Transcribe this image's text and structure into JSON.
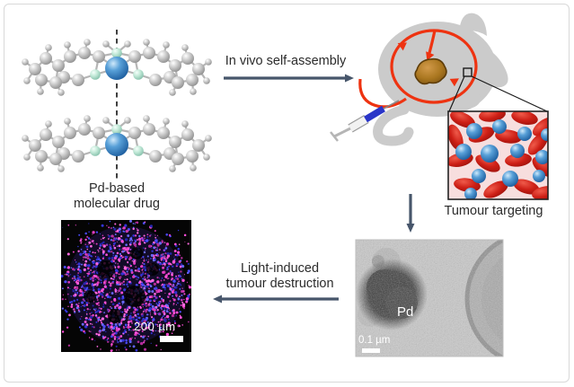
{
  "figure": {
    "panels": {
      "molecular_drug": {
        "caption_line1": "Pd-based",
        "caption_line2": "molecular drug"
      },
      "tem": {
        "particle_label": "Pd",
        "scale_label": "0.1 µm"
      },
      "fluorescence": {
        "scale_label": "200 µm"
      }
    },
    "steps": {
      "self_assembly": {
        "label": "In vivo self-assembly",
        "direction": "right"
      },
      "tumour_targeting": {
        "label": "Tumour targeting",
        "direction": "down"
      },
      "light_destruction": {
        "line1": "Light-induced",
        "line2": "tumour destruction",
        "direction": "left"
      }
    },
    "icons": {
      "molecule": "pd-complex-stack-icon",
      "mouse": "mouse-silhouette-icon",
      "syringe": "syringe-icon",
      "circulation": "blood-circulation-loop-icon",
      "tumour": "tumour-blob-icon",
      "inset": "blood-cells-nanoparticles-icon"
    },
    "colors": {
      "step_arrow": "#47566b",
      "vessel_red": "#ee3311",
      "tumour_brown": "#a9761f",
      "mouse_gray": "#cbcbcb",
      "inset_pink": "#f7dede",
      "caption_text": "#2b2b2b",
      "fluo_magenta": "#e03cc0",
      "fluo_blue": "#3434d6"
    }
  }
}
